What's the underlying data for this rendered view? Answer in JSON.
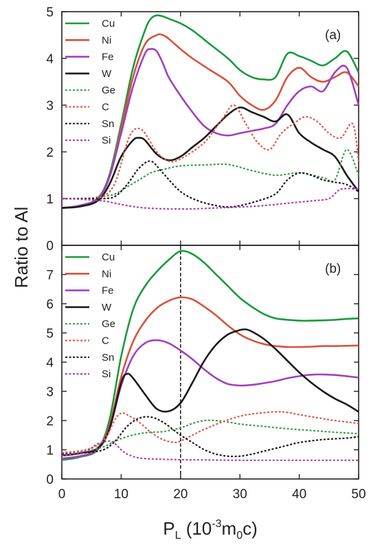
{
  "chart_data": [
    {
      "type": "line",
      "panel_label": "(a)",
      "xlim": [
        0,
        50
      ],
      "ylim": [
        0,
        5
      ],
      "xticks": [
        0,
        10,
        20,
        30,
        40,
        50
      ],
      "yticks": [
        0,
        1,
        2,
        3,
        4,
        5
      ],
      "ylabel": "Ratio to Al",
      "legend_position": "top-left",
      "series": [
        {
          "name": "Cu",
          "color": "#1a9a3a",
          "style": "solid",
          "x": [
            0,
            3,
            6,
            8,
            10,
            12,
            14,
            15,
            16,
            17,
            18,
            20,
            22,
            25,
            28,
            30,
            32,
            34,
            36,
            38,
            40,
            42,
            44,
            46,
            48,
            50
          ],
          "y": [
            0.8,
            0.85,
            1.0,
            1.5,
            2.6,
            3.8,
            4.6,
            4.85,
            4.92,
            4.9,
            4.85,
            4.75,
            4.6,
            4.3,
            4.0,
            3.75,
            3.6,
            3.55,
            3.6,
            4.1,
            4.05,
            3.95,
            3.85,
            4.0,
            4.15,
            3.7
          ]
        },
        {
          "name": "Ni",
          "color": "#d9513a",
          "style": "solid",
          "x": [
            0,
            3,
            6,
            8,
            10,
            12,
            14,
            16,
            17,
            18,
            20,
            22,
            25,
            28,
            30,
            32,
            34,
            36,
            38,
            40,
            42,
            44,
            46,
            48,
            50
          ],
          "y": [
            0.8,
            0.85,
            1.0,
            1.45,
            2.5,
            3.6,
            4.3,
            4.5,
            4.5,
            4.42,
            4.2,
            4.0,
            3.75,
            3.5,
            3.2,
            3.0,
            2.9,
            3.1,
            3.6,
            3.8,
            3.6,
            3.5,
            3.6,
            3.7,
            3.4
          ]
        },
        {
          "name": "Fe",
          "color": "#a040c0",
          "style": "solid",
          "x": [
            0,
            3,
            6,
            8,
            10,
            12,
            14,
            15,
            16,
            17,
            18,
            20,
            22,
            24,
            26,
            28,
            30,
            32,
            34,
            36,
            38,
            40,
            42,
            44,
            46,
            48,
            50
          ],
          "y": [
            0.8,
            0.85,
            1.0,
            1.45,
            2.4,
            3.4,
            4.1,
            4.2,
            4.15,
            3.9,
            3.6,
            3.2,
            2.85,
            2.55,
            2.4,
            2.35,
            2.4,
            2.45,
            2.5,
            2.6,
            3.0,
            3.3,
            3.4,
            3.3,
            3.7,
            3.8,
            3.0
          ]
        },
        {
          "name": "W",
          "color": "#1a1a1a",
          "style": "solid",
          "x": [
            0,
            3,
            6,
            8,
            10,
            12,
            13,
            14,
            16,
            18,
            20,
            22,
            24,
            26,
            28,
            30,
            32,
            34,
            36,
            38,
            40,
            42,
            44,
            46,
            48,
            50
          ],
          "y": [
            0.8,
            0.83,
            0.95,
            1.3,
            1.9,
            2.25,
            2.3,
            2.25,
            1.95,
            1.82,
            1.9,
            2.1,
            2.3,
            2.55,
            2.8,
            2.95,
            2.85,
            2.75,
            2.65,
            2.8,
            2.4,
            2.2,
            2.05,
            1.9,
            1.5,
            1.15
          ]
        },
        {
          "name": "Ge",
          "color": "#3aa04a",
          "style": "dotted",
          "x": [
            0,
            4,
            7,
            9,
            11,
            13,
            15,
            17,
            20,
            24,
            28,
            32,
            36,
            40,
            44,
            46,
            48,
            50
          ],
          "y": [
            1.0,
            1.0,
            1.05,
            1.1,
            1.25,
            1.4,
            1.55,
            1.62,
            1.7,
            1.72,
            1.73,
            1.6,
            1.5,
            1.55,
            1.45,
            1.4,
            2.05,
            1.5
          ]
        },
        {
          "name": "C",
          "color": "#e05a4a",
          "style": "dotted",
          "x": [
            0,
            4,
            7,
            9,
            11,
            12,
            13,
            14,
            16,
            18,
            20,
            24,
            27,
            29,
            31,
            33,
            35,
            37,
            39,
            41,
            43,
            45,
            47,
            49,
            50
          ],
          "y": [
            1.0,
            1.0,
            1.05,
            1.35,
            2.2,
            2.45,
            2.5,
            2.4,
            2.0,
            1.8,
            1.85,
            2.2,
            2.7,
            3.0,
            2.6,
            2.2,
            2.05,
            2.4,
            2.6,
            2.75,
            2.65,
            2.4,
            2.3,
            2.6,
            1.8
          ]
        },
        {
          "name": "Sn",
          "color": "#1a1a1a",
          "style": "dotted",
          "x": [
            0,
            4,
            7,
            9,
            11,
            13,
            15,
            17,
            20,
            23,
            26,
            28,
            30,
            33,
            36,
            38,
            40,
            42,
            44,
            46,
            48,
            50
          ],
          "y": [
            1.0,
            1.0,
            1.0,
            1.05,
            1.3,
            1.65,
            1.8,
            1.55,
            1.15,
            0.95,
            0.85,
            0.82,
            0.85,
            0.95,
            1.1,
            1.4,
            1.55,
            1.5,
            1.4,
            1.35,
            1.3,
            1.15
          ]
        },
        {
          "name": "Si",
          "color": "#b040b0",
          "style": "dotted",
          "x": [
            0,
            4,
            7,
            9,
            11,
            14,
            18,
            22,
            26,
            30,
            34,
            38,
            42,
            45,
            47,
            50
          ],
          "y": [
            1.0,
            0.98,
            0.95,
            0.9,
            0.85,
            0.8,
            0.78,
            0.78,
            0.8,
            0.82,
            0.85,
            0.9,
            0.95,
            1.0,
            1.2,
            1.2
          ]
        }
      ]
    },
    {
      "type": "line",
      "panel_label": "(b)",
      "xlim": [
        0,
        50
      ],
      "ylim": [
        0,
        8
      ],
      "xticks": [
        0,
        10,
        20,
        30,
        40,
        50
      ],
      "yticks": [
        0,
        1,
        2,
        3,
        4,
        5,
        6,
        7
      ],
      "xlabel": "P_L (10^-3 m_0 c)",
      "xlabel_parts": {
        "p": "P",
        "l": "L",
        "open": " (10",
        "exp": "-3",
        "m": "m",
        "zero": "0",
        "close": "c)"
      },
      "ylabel": "Ratio to Al",
      "legend_position": "top-left",
      "reference_line_x": 20,
      "series": [
        {
          "name": "Cu",
          "color": "#1a9a3a",
          "style": "solid",
          "x": [
            0,
            3,
            6,
            8,
            10,
            12,
            14,
            16,
            18,
            20,
            22,
            24,
            26,
            28,
            30,
            32,
            34,
            36,
            38,
            40,
            42,
            44,
            46,
            48,
            50
          ],
          "y": [
            0.65,
            0.75,
            1.0,
            2.0,
            4.2,
            5.8,
            6.6,
            7.1,
            7.5,
            7.8,
            7.7,
            7.4,
            7.0,
            6.6,
            6.2,
            5.9,
            5.65,
            5.5,
            5.45,
            5.42,
            5.42,
            5.43,
            5.45,
            5.48,
            5.5
          ]
        },
        {
          "name": "Ni",
          "color": "#d9513a",
          "style": "solid",
          "x": [
            0,
            3,
            6,
            8,
            10,
            12,
            14,
            16,
            18,
            20,
            22,
            24,
            26,
            28,
            30,
            32,
            34,
            36,
            38,
            40,
            42,
            44,
            46,
            48,
            50
          ],
          "y": [
            0.7,
            0.78,
            1.0,
            1.8,
            3.5,
            4.7,
            5.4,
            5.85,
            6.1,
            6.22,
            6.15,
            5.9,
            5.6,
            5.25,
            4.95,
            4.75,
            4.62,
            4.55,
            4.52,
            4.52,
            4.53,
            4.55,
            4.55,
            4.56,
            4.57
          ]
        },
        {
          "name": "Fe",
          "color": "#a040c0",
          "style": "solid",
          "x": [
            0,
            3,
            6,
            8,
            10,
            12,
            14,
            16,
            18,
            20,
            22,
            24,
            26,
            28,
            30,
            32,
            34,
            36,
            38,
            40,
            42,
            44,
            46,
            48,
            50
          ],
          "y": [
            0.7,
            0.78,
            1.0,
            1.7,
            3.2,
            4.2,
            4.65,
            4.75,
            4.65,
            4.4,
            4.1,
            3.75,
            3.45,
            3.25,
            3.2,
            3.22,
            3.28,
            3.35,
            3.45,
            3.52,
            3.57,
            3.58,
            3.56,
            3.52,
            3.47
          ]
        },
        {
          "name": "W",
          "color": "#1a1a1a",
          "style": "solid",
          "x": [
            0,
            3,
            6,
            8,
            10,
            11,
            12,
            14,
            16,
            18,
            20,
            22,
            24,
            26,
            28,
            30,
            31,
            32,
            34,
            36,
            38,
            40,
            42,
            44,
            46,
            48,
            50
          ],
          "y": [
            0.8,
            0.88,
            1.05,
            1.7,
            3.3,
            3.6,
            3.45,
            2.9,
            2.4,
            2.32,
            2.6,
            3.3,
            4.05,
            4.6,
            4.95,
            5.1,
            5.12,
            5.05,
            4.8,
            4.45,
            4.05,
            3.65,
            3.3,
            3.0,
            2.75,
            2.55,
            2.3
          ]
        },
        {
          "name": "Ge",
          "color": "#3aa04a",
          "style": "dotted",
          "x": [
            0,
            4,
            7,
            9,
            11,
            13,
            15,
            17,
            20,
            22,
            24,
            26,
            28,
            30,
            34,
            38,
            42,
            46,
            50
          ],
          "y": [
            0.85,
            0.95,
            1.1,
            1.3,
            1.45,
            1.55,
            1.6,
            1.62,
            1.75,
            1.9,
            2.0,
            2.0,
            1.95,
            1.88,
            1.8,
            1.72,
            1.66,
            1.6,
            1.55
          ]
        },
        {
          "name": "C",
          "color": "#e05a4a",
          "style": "dotted",
          "x": [
            0,
            4,
            7,
            9,
            10,
            11,
            13,
            15,
            17,
            19,
            20,
            22,
            24,
            27,
            30,
            33,
            36,
            38,
            40,
            43,
            46,
            50
          ],
          "y": [
            0.9,
            1.0,
            1.3,
            2.05,
            2.25,
            2.2,
            1.95,
            1.6,
            1.35,
            1.25,
            1.3,
            1.5,
            1.7,
            1.95,
            2.15,
            2.25,
            2.3,
            2.28,
            2.2,
            2.1,
            2.0,
            1.9
          ]
        },
        {
          "name": "Sn",
          "color": "#1a1a1a",
          "style": "dotted",
          "x": [
            0,
            4,
            7,
            9,
            11,
            13,
            15,
            17,
            19,
            20,
            22,
            24,
            26,
            28,
            30,
            32,
            34,
            36,
            38,
            40,
            44,
            48,
            50
          ],
          "y": [
            0.85,
            0.9,
            1.0,
            1.3,
            1.8,
            2.08,
            2.12,
            1.95,
            1.65,
            1.5,
            1.25,
            1.0,
            0.85,
            0.78,
            0.78,
            0.85,
            0.95,
            1.05,
            1.15,
            1.25,
            1.35,
            1.4,
            1.45
          ]
        },
        {
          "name": "Si",
          "color": "#b040b0",
          "style": "dotted",
          "x": [
            0,
            4,
            6,
            8,
            9,
            10,
            11,
            13,
            16,
            20,
            25,
            30,
            35,
            40,
            45,
            50
          ],
          "y": [
            0.8,
            0.95,
            1.2,
            1.3,
            1.2,
            1.0,
            0.85,
            0.72,
            0.68,
            0.66,
            0.65,
            0.64,
            0.64,
            0.64,
            0.64,
            0.64
          ]
        }
      ]
    }
  ]
}
